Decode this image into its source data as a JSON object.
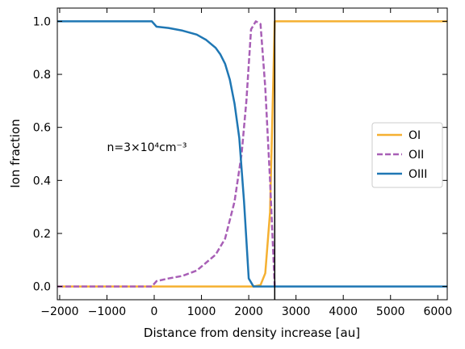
{
  "chart_data": {
    "type": "line",
    "title": "",
    "xlabel": "Distance from density increase [au]",
    "ylabel": "Ion fraction",
    "xlim": [
      -2050,
      6200
    ],
    "ylim": [
      -0.05,
      1.05
    ],
    "xticks": [
      -2000,
      -1000,
      0,
      1000,
      2000,
      3000,
      4000,
      5000,
      6000
    ],
    "xtick_labels": [
      "−2000",
      "−1000",
      "0",
      "1000",
      "2000",
      "3000",
      "4000",
      "5000",
      "6000"
    ],
    "yticks": [
      0.0,
      0.2,
      0.4,
      0.6,
      0.8,
      1.0
    ],
    "ytick_labels": [
      "0.0",
      "0.2",
      "0.4",
      "0.6",
      "0.8",
      "1.0"
    ],
    "grid": false,
    "legend_position": "center-right",
    "annotation": {
      "text": "n=3×10⁴cm⁻³",
      "x": -1000,
      "y": 0.51
    },
    "vline": {
      "x": 2550,
      "color": "#000000"
    },
    "series": [
      {
        "name": "OI",
        "color": "#f5b031",
        "style": "solid",
        "x": [
          -2050,
          2100,
          2250,
          2350,
          2450,
          2550,
          6200
        ],
        "y": [
          0.0,
          0.0,
          0.005,
          0.05,
          0.28,
          1.0,
          1.0
        ]
      },
      {
        "name": "OII",
        "color": "#a85fb6",
        "style": "dashed",
        "x": [
          -2050,
          -50,
          50,
          300,
          600,
          900,
          1100,
          1300,
          1500,
          1700,
          1850,
          1950,
          2050,
          2150,
          2250,
          2350,
          2450,
          2550
        ],
        "y": [
          0.0,
          0.0,
          0.02,
          0.03,
          0.04,
          0.06,
          0.09,
          0.12,
          0.18,
          0.32,
          0.5,
          0.7,
          0.97,
          1.0,
          0.99,
          0.75,
          0.4,
          0.0
        ]
      },
      {
        "name": "OIII",
        "color": "#1f77b4",
        "style": "solid",
        "x": [
          -2050,
          -50,
          50,
          300,
          600,
          900,
          1100,
          1300,
          1400,
          1500,
          1600,
          1700,
          1800,
          1900,
          2000,
          2100,
          2200,
          2550,
          6200
        ],
        "y": [
          1.0,
          1.0,
          0.98,
          0.975,
          0.965,
          0.95,
          0.93,
          0.9,
          0.875,
          0.84,
          0.78,
          0.69,
          0.56,
          0.32,
          0.03,
          0.0,
          0.0,
          0.0,
          0.0
        ]
      }
    ]
  }
}
